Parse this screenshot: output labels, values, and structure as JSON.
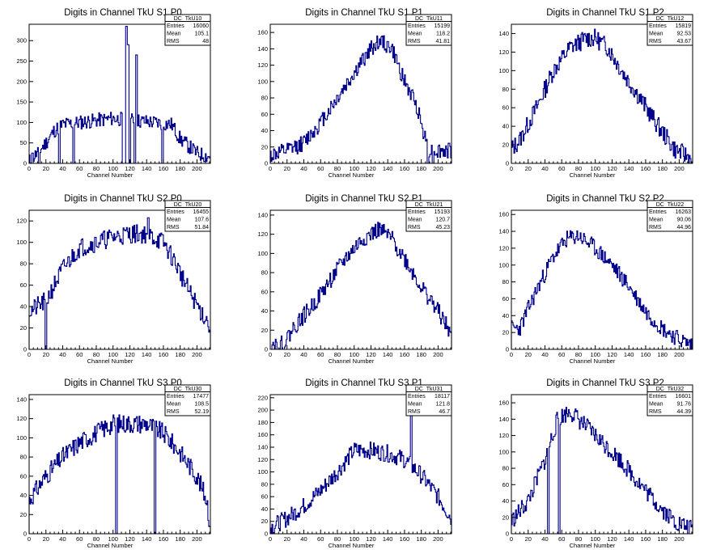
{
  "chart_data": [
    {
      "type": "histogram",
      "title": "Digits in Channel TkU S1 P0",
      "xlabel": "Channel Number",
      "xlim": [
        0,
        216
      ],
      "ylim": [
        0,
        340
      ],
      "xticks": [
        0,
        20,
        40,
        60,
        80,
        100,
        120,
        140,
        160,
        180,
        200
      ],
      "yticks": [
        0,
        50,
        100,
        150,
        200,
        250,
        300
      ],
      "stats": {
        "name": "DC_TkU10",
        "entries": "16060",
        "mean": "105.1",
        "rms": "48"
      },
      "profile": [
        [
          0,
          5
        ],
        [
          10,
          25
        ],
        [
          20,
          50
        ],
        [
          30,
          80
        ],
        [
          40,
          95
        ],
        [
          60,
          100
        ],
        [
          100,
          110
        ],
        [
          150,
          100
        ],
        [
          170,
          95
        ],
        [
          180,
          60
        ],
        [
          200,
          25
        ],
        [
          216,
          15
        ]
      ],
      "spikes": [
        [
          3,
          25,
          2
        ],
        [
          11,
          0,
          2
        ],
        [
          35,
          0,
          2
        ],
        [
          52,
          0,
          2
        ],
        [
          111,
          0,
          2
        ],
        [
          113,
          0,
          2
        ],
        [
          115,
          335,
          2
        ],
        [
          117,
          290,
          2
        ],
        [
          119,
          0,
          2
        ],
        [
          125,
          0,
          2
        ],
        [
          127,
          265,
          2
        ],
        [
          158,
          0,
          2
        ]
      ],
      "noise": 18,
      "seed": 11
    },
    {
      "type": "histogram",
      "title": "Digits in Channel TkU S1 P1",
      "xlabel": "Channel Number",
      "xlim": [
        0,
        216
      ],
      "ylim": [
        0,
        170
      ],
      "xticks": [
        0,
        20,
        40,
        60,
        80,
        100,
        120,
        140,
        160,
        180,
        200
      ],
      "yticks": [
        0,
        20,
        40,
        60,
        80,
        100,
        120,
        140,
        160
      ],
      "stats": {
        "name": "DC_TkU11",
        "entries": "15199",
        "mean": "118.2",
        "rms": "41.81"
      },
      "profile": [
        [
          0,
          10
        ],
        [
          20,
          15
        ],
        [
          40,
          25
        ],
        [
          60,
          50
        ],
        [
          80,
          80
        ],
        [
          100,
          110
        ],
        [
          120,
          140
        ],
        [
          130,
          150
        ],
        [
          145,
          140
        ],
        [
          160,
          100
        ],
        [
          175,
          70
        ],
        [
          185,
          30
        ],
        [
          190,
          15
        ],
        [
          216,
          15
        ]
      ],
      "spikes": [
        [
          187,
          0,
          2
        ],
        [
          193,
          0,
          2
        ]
      ],
      "noise": 10,
      "seed": 12
    },
    {
      "type": "histogram",
      "title": "Digits in Channel TkU S1 P2",
      "xlabel": "Channel Number",
      "xlim": [
        0,
        216
      ],
      "ylim": [
        0,
        150
      ],
      "xticks": [
        0,
        20,
        40,
        60,
        80,
        100,
        120,
        140,
        160,
        180,
        200
      ],
      "yticks": [
        0,
        20,
        40,
        60,
        80,
        100,
        120,
        140
      ],
      "stats": {
        "name": "DC_TkU12",
        "entries": "15819",
        "mean": "92.53",
        "rms": "43.67"
      },
      "profile": [
        [
          0,
          15
        ],
        [
          10,
          25
        ],
        [
          30,
          60
        ],
        [
          50,
          100
        ],
        [
          70,
          125
        ],
        [
          90,
          135
        ],
        [
          100,
          135
        ],
        [
          115,
          125
        ],
        [
          135,
          95
        ],
        [
          150,
          75
        ],
        [
          175,
          40
        ],
        [
          195,
          15
        ],
        [
          216,
          5
        ]
      ],
      "spikes": [
        [
          214,
          0,
          2
        ]
      ],
      "noise": 10,
      "seed": 13
    },
    {
      "type": "histogram",
      "title": "Digits in Channel TkU S2 P0",
      "xlabel": "Channel Number",
      "xlim": [
        0,
        216
      ],
      "ylim": [
        0,
        130
      ],
      "xticks": [
        0,
        20,
        40,
        60,
        80,
        100,
        120,
        140,
        160,
        180,
        200
      ],
      "yticks": [
        0,
        20,
        40,
        60,
        80,
        100,
        120
      ],
      "stats": {
        "name": "DC_TkU20",
        "entries": "16455",
        "mean": "107.6",
        "rms": "51.84"
      },
      "profile": [
        [
          0,
          35
        ],
        [
          20,
          45
        ],
        [
          40,
          75
        ],
        [
          60,
          95
        ],
        [
          80,
          100
        ],
        [
          100,
          105
        ],
        [
          120,
          108
        ],
        [
          140,
          108
        ],
        [
          160,
          100
        ],
        [
          175,
          80
        ],
        [
          190,
          55
        ],
        [
          205,
          35
        ],
        [
          214,
          25
        ],
        [
          216,
          5
        ]
      ],
      "spikes": [
        [
          19,
          0,
          2
        ],
        [
          141,
          123,
          2
        ]
      ],
      "noise": 9,
      "seed": 21
    },
    {
      "type": "histogram",
      "title": "Digits in Channel TkU S2 P1",
      "xlabel": "Channel Number",
      "xlim": [
        0,
        216
      ],
      "ylim": [
        0,
        145
      ],
      "xticks": [
        0,
        20,
        40,
        60,
        80,
        100,
        120,
        140,
        160,
        180,
        200
      ],
      "yticks": [
        0,
        20,
        40,
        60,
        80,
        100,
        120,
        140
      ],
      "stats": {
        "name": "DC_TkU21",
        "entries": "15193",
        "mean": "120.7",
        "rms": "45.23"
      },
      "profile": [
        [
          0,
          5
        ],
        [
          15,
          5
        ],
        [
          30,
          25
        ],
        [
          50,
          45
        ],
        [
          70,
          70
        ],
        [
          90,
          95
        ],
        [
          110,
          115
        ],
        [
          130,
          125
        ],
        [
          145,
          115
        ],
        [
          160,
          95
        ],
        [
          180,
          65
        ],
        [
          200,
          40
        ],
        [
          216,
          15
        ]
      ],
      "spikes": [
        [
          9,
          0,
          2
        ],
        [
          14,
          0,
          2
        ]
      ],
      "noise": 9,
      "seed": 22
    },
    {
      "type": "histogram",
      "title": "Digits in Channel TkU S2 P2",
      "xlabel": "Channel Number",
      "xlim": [
        0,
        216
      ],
      "ylim": [
        0,
        165
      ],
      "xticks": [
        0,
        20,
        40,
        60,
        80,
        100,
        120,
        140,
        160,
        180,
        200
      ],
      "yticks": [
        0,
        20,
        40,
        60,
        80,
        100,
        120,
        140,
        160
      ],
      "stats": {
        "name": "DC_TkU22",
        "entries": "16263",
        "mean": "90.06",
        "rms": "44.96"
      },
      "profile": [
        [
          0,
          25
        ],
        [
          10,
          25
        ],
        [
          30,
          70
        ],
        [
          50,
          110
        ],
        [
          65,
          130
        ],
        [
          80,
          135
        ],
        [
          100,
          120
        ],
        [
          120,
          100
        ],
        [
          140,
          75
        ],
        [
          160,
          45
        ],
        [
          180,
          25
        ],
        [
          200,
          12
        ],
        [
          216,
          5
        ]
      ],
      "spikes": [],
      "noise": 10,
      "seed": 23
    },
    {
      "type": "histogram",
      "title": "Digits in Channel TkU S3 P0",
      "xlabel": "Channel Number",
      "xlim": [
        0,
        216
      ],
      "ylim": [
        0,
        145
      ],
      "xticks": [
        0,
        20,
        40,
        60,
        80,
        100,
        120,
        140,
        160,
        180,
        200
      ],
      "yticks": [
        0,
        20,
        40,
        60,
        80,
        100,
        120,
        140
      ],
      "stats": {
        "name": "DC_TkU30",
        "entries": "17477",
        "mean": "108.5",
        "rms": "52.19"
      },
      "profile": [
        [
          0,
          35
        ],
        [
          20,
          60
        ],
        [
          40,
          80
        ],
        [
          60,
          95
        ],
        [
          80,
          105
        ],
        [
          100,
          115
        ],
        [
          120,
          115
        ],
        [
          140,
          115
        ],
        [
          160,
          105
        ],
        [
          180,
          85
        ],
        [
          200,
          60
        ],
        [
          212,
          35
        ],
        [
          216,
          5
        ]
      ],
      "spikes": [
        [
          103,
          0,
          2
        ],
        [
          149,
          0,
          2
        ]
      ],
      "noise": 10,
      "seed": 31
    },
    {
      "type": "histogram",
      "title": "Digits in Channel TkU S3 P1",
      "xlabel": "Channel Number",
      "xlim": [
        0,
        216
      ],
      "ylim": [
        0,
        225
      ],
      "xticks": [
        0,
        20,
        40,
        60,
        80,
        100,
        120,
        140,
        160,
        180,
        200
      ],
      "yticks": [
        0,
        20,
        40,
        60,
        80,
        100,
        120,
        140,
        160,
        180,
        200,
        220
      ],
      "stats": {
        "name": "DC_TkU31",
        "entries": "18117",
        "mean": "121.8",
        "rms": "46.7"
      },
      "profile": [
        [
          0,
          10
        ],
        [
          20,
          25
        ],
        [
          40,
          45
        ],
        [
          60,
          70
        ],
        [
          80,
          100
        ],
        [
          100,
          135
        ],
        [
          120,
          135
        ],
        [
          140,
          130
        ],
        [
          160,
          120
        ],
        [
          180,
          95
        ],
        [
          200,
          60
        ],
        [
          216,
          25
        ]
      ],
      "spikes": [
        [
          167,
          210,
          2
        ]
      ],
      "noise": 14,
      "seed": 32
    },
    {
      "type": "histogram",
      "title": "Digits in Channel TkU S3 P2",
      "xlabel": "Channel Number",
      "xlim": [
        0,
        216
      ],
      "ylim": [
        0,
        170
      ],
      "xticks": [
        0,
        20,
        40,
        60,
        80,
        100,
        120,
        140,
        160,
        180,
        200
      ],
      "yticks": [
        0,
        20,
        40,
        60,
        80,
        100,
        120,
        140,
        160
      ],
      "stats": {
        "name": "DC_TkU32",
        "entries": "16601",
        "mean": "91.76",
        "rms": "44.39"
      },
      "profile": [
        [
          0,
          15
        ],
        [
          20,
          40
        ],
        [
          40,
          90
        ],
        [
          55,
          140
        ],
        [
          70,
          150
        ],
        [
          90,
          130
        ],
        [
          110,
          110
        ],
        [
          130,
          90
        ],
        [
          150,
          65
        ],
        [
          175,
          35
        ],
        [
          195,
          15
        ],
        [
          216,
          5
        ]
      ],
      "spikes": [
        [
          43,
          0,
          2
        ],
        [
          56,
          0,
          2
        ]
      ],
      "noise": 11,
      "seed": 33
    }
  ]
}
